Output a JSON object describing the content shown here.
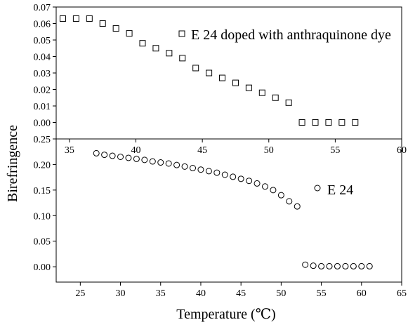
{
  "chart_data": [
    {
      "type": "scatter",
      "xlim": [
        34,
        60
      ],
      "ylim": [
        -0.01,
        0.07
      ],
      "x_ticks": [
        35,
        40,
        45,
        50,
        55,
        60
      ],
      "y_ticks": [
        "0.00",
        "0.01",
        "0.02",
        "0.03",
        "0.04",
        "0.05",
        "0.06",
        "0.07"
      ],
      "series": [
        {
          "name": "E 24 doped with anthraquinone dye",
          "marker": "square",
          "x": [
            34.5,
            35.5,
            36.5,
            37.5,
            38.5,
            39.5,
            40.5,
            41.5,
            42.5,
            43.5,
            44.5,
            45.5,
            46.5,
            47.5,
            48.5,
            49.5,
            50.5,
            51.5,
            52.5,
            53.5,
            54.5,
            55.5,
            56.5
          ],
          "y": [
            0.063,
            0.063,
            0.063,
            0.06,
            0.057,
            0.054,
            0.048,
            0.045,
            0.042,
            0.039,
            0.033,
            0.03,
            0.027,
            0.024,
            0.021,
            0.018,
            0.015,
            0.012,
            0.0,
            0.0,
            0.0,
            0.0,
            0.0
          ]
        }
      ],
      "legend_position": "top-right"
    },
    {
      "type": "scatter",
      "xlim": [
        22,
        65
      ],
      "ylim": [
        -0.03,
        0.25
      ],
      "x_ticks": [
        25,
        30,
        35,
        40,
        45,
        50,
        55,
        60,
        65
      ],
      "y_ticks": [
        "0.00",
        "0.05",
        "0.10",
        "0.15",
        "0.20",
        "0.25"
      ],
      "xlabel": "Temperature (℃)",
      "series": [
        {
          "name": "E 24",
          "marker": "circle",
          "x": [
            27,
            28,
            29,
            30,
            31,
            32,
            33,
            34,
            35,
            36,
            37,
            38,
            39,
            40,
            41,
            42,
            43,
            44,
            45,
            46,
            47,
            48,
            49,
            50,
            51,
            52,
            53,
            54,
            55,
            56,
            57,
            58,
            59,
            60,
            61
          ],
          "y": [
            0.222,
            0.219,
            0.217,
            0.215,
            0.213,
            0.211,
            0.209,
            0.206,
            0.204,
            0.202,
            0.199,
            0.196,
            0.193,
            0.19,
            0.187,
            0.184,
            0.18,
            0.176,
            0.172,
            0.168,
            0.163,
            0.157,
            0.15,
            0.14,
            0.128,
            0.118,
            0.004,
            0.002,
            0.001,
            0.001,
            0.001,
            0.001,
            0.001,
            0.001,
            0.001
          ]
        }
      ],
      "legend_position": "top-right"
    }
  ],
  "ylabel": "Birefringence"
}
